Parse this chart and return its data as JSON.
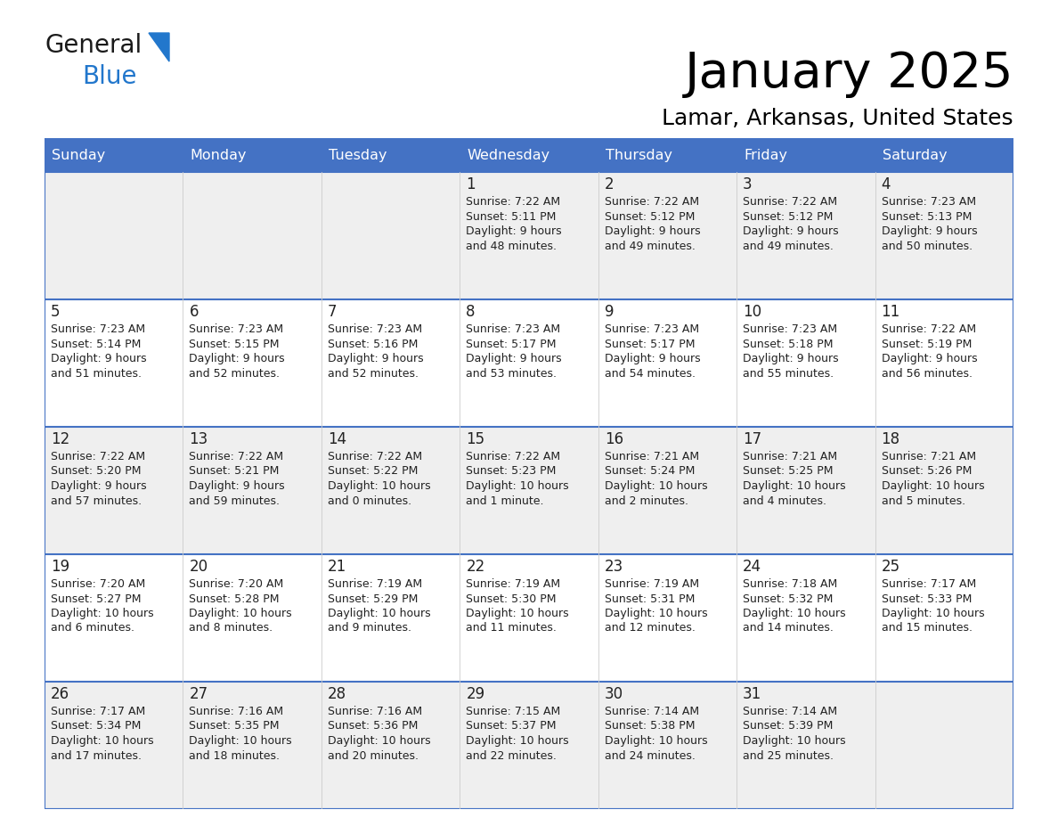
{
  "title": "January 2025",
  "subtitle": "Lamar, Arkansas, United States",
  "header_bg": "#4472C4",
  "header_text_color": "#FFFFFF",
  "row_bg_odd": "#EFEFEF",
  "row_bg_even": "#FFFFFF",
  "border_color": "#4472C4",
  "cell_border_color": "#4472C4",
  "day_names": [
    "Sunday",
    "Monday",
    "Tuesday",
    "Wednesday",
    "Thursday",
    "Friday",
    "Saturday"
  ],
  "days": [
    {
      "day": null,
      "sunrise": null,
      "sunset": null,
      "daylight_line1": null,
      "daylight_line2": null
    },
    {
      "day": null,
      "sunrise": null,
      "sunset": null,
      "daylight_line1": null,
      "daylight_line2": null
    },
    {
      "day": null,
      "sunrise": null,
      "sunset": null,
      "daylight_line1": null,
      "daylight_line2": null
    },
    {
      "day": 1,
      "sunrise": "7:22 AM",
      "sunset": "5:11 PM",
      "daylight_line1": "9 hours",
      "daylight_line2": "and 48 minutes."
    },
    {
      "day": 2,
      "sunrise": "7:22 AM",
      "sunset": "5:12 PM",
      "daylight_line1": "9 hours",
      "daylight_line2": "and 49 minutes."
    },
    {
      "day": 3,
      "sunrise": "7:22 AM",
      "sunset": "5:12 PM",
      "daylight_line1": "9 hours",
      "daylight_line2": "and 49 minutes."
    },
    {
      "day": 4,
      "sunrise": "7:23 AM",
      "sunset": "5:13 PM",
      "daylight_line1": "9 hours",
      "daylight_line2": "and 50 minutes."
    },
    {
      "day": 5,
      "sunrise": "7:23 AM",
      "sunset": "5:14 PM",
      "daylight_line1": "9 hours",
      "daylight_line2": "and 51 minutes."
    },
    {
      "day": 6,
      "sunrise": "7:23 AM",
      "sunset": "5:15 PM",
      "daylight_line1": "9 hours",
      "daylight_line2": "and 52 minutes."
    },
    {
      "day": 7,
      "sunrise": "7:23 AM",
      "sunset": "5:16 PM",
      "daylight_line1": "9 hours",
      "daylight_line2": "and 52 minutes."
    },
    {
      "day": 8,
      "sunrise": "7:23 AM",
      "sunset": "5:17 PM",
      "daylight_line1": "9 hours",
      "daylight_line2": "and 53 minutes."
    },
    {
      "day": 9,
      "sunrise": "7:23 AM",
      "sunset": "5:17 PM",
      "daylight_line1": "9 hours",
      "daylight_line2": "and 54 minutes."
    },
    {
      "day": 10,
      "sunrise": "7:23 AM",
      "sunset": "5:18 PM",
      "daylight_line1": "9 hours",
      "daylight_line2": "and 55 minutes."
    },
    {
      "day": 11,
      "sunrise": "7:22 AM",
      "sunset": "5:19 PM",
      "daylight_line1": "9 hours",
      "daylight_line2": "and 56 minutes."
    },
    {
      "day": 12,
      "sunrise": "7:22 AM",
      "sunset": "5:20 PM",
      "daylight_line1": "9 hours",
      "daylight_line2": "and 57 minutes."
    },
    {
      "day": 13,
      "sunrise": "7:22 AM",
      "sunset": "5:21 PM",
      "daylight_line1": "9 hours",
      "daylight_line2": "and 59 minutes."
    },
    {
      "day": 14,
      "sunrise": "7:22 AM",
      "sunset": "5:22 PM",
      "daylight_line1": "10 hours",
      "daylight_line2": "and 0 minutes."
    },
    {
      "day": 15,
      "sunrise": "7:22 AM",
      "sunset": "5:23 PM",
      "daylight_line1": "10 hours",
      "daylight_line2": "and 1 minute."
    },
    {
      "day": 16,
      "sunrise": "7:21 AM",
      "sunset": "5:24 PM",
      "daylight_line1": "10 hours",
      "daylight_line2": "and 2 minutes."
    },
    {
      "day": 17,
      "sunrise": "7:21 AM",
      "sunset": "5:25 PM",
      "daylight_line1": "10 hours",
      "daylight_line2": "and 4 minutes."
    },
    {
      "day": 18,
      "sunrise": "7:21 AM",
      "sunset": "5:26 PM",
      "daylight_line1": "10 hours",
      "daylight_line2": "and 5 minutes."
    },
    {
      "day": 19,
      "sunrise": "7:20 AM",
      "sunset": "5:27 PM",
      "daylight_line1": "10 hours",
      "daylight_line2": "and 6 minutes."
    },
    {
      "day": 20,
      "sunrise": "7:20 AM",
      "sunset": "5:28 PM",
      "daylight_line1": "10 hours",
      "daylight_line2": "and 8 minutes."
    },
    {
      "day": 21,
      "sunrise": "7:19 AM",
      "sunset": "5:29 PM",
      "daylight_line1": "10 hours",
      "daylight_line2": "and 9 minutes."
    },
    {
      "day": 22,
      "sunrise": "7:19 AM",
      "sunset": "5:30 PM",
      "daylight_line1": "10 hours",
      "daylight_line2": "and 11 minutes."
    },
    {
      "day": 23,
      "sunrise": "7:19 AM",
      "sunset": "5:31 PM",
      "daylight_line1": "10 hours",
      "daylight_line2": "and 12 minutes."
    },
    {
      "day": 24,
      "sunrise": "7:18 AM",
      "sunset": "5:32 PM",
      "daylight_line1": "10 hours",
      "daylight_line2": "and 14 minutes."
    },
    {
      "day": 25,
      "sunrise": "7:17 AM",
      "sunset": "5:33 PM",
      "daylight_line1": "10 hours",
      "daylight_line2": "and 15 minutes."
    },
    {
      "day": 26,
      "sunrise": "7:17 AM",
      "sunset": "5:34 PM",
      "daylight_line1": "10 hours",
      "daylight_line2": "and 17 minutes."
    },
    {
      "day": 27,
      "sunrise": "7:16 AM",
      "sunset": "5:35 PM",
      "daylight_line1": "10 hours",
      "daylight_line2": "and 18 minutes."
    },
    {
      "day": 28,
      "sunrise": "7:16 AM",
      "sunset": "5:36 PM",
      "daylight_line1": "10 hours",
      "daylight_line2": "and 20 minutes."
    },
    {
      "day": 29,
      "sunrise": "7:15 AM",
      "sunset": "5:37 PM",
      "daylight_line1": "10 hours",
      "daylight_line2": "and 22 minutes."
    },
    {
      "day": 30,
      "sunrise": "7:14 AM",
      "sunset": "5:38 PM",
      "daylight_line1": "10 hours",
      "daylight_line2": "and 24 minutes."
    },
    {
      "day": 31,
      "sunrise": "7:14 AM",
      "sunset": "5:39 PM",
      "daylight_line1": "10 hours",
      "daylight_line2": "and 25 minutes."
    },
    {
      "day": null,
      "sunrise": null,
      "sunset": null,
      "daylight_line1": null,
      "daylight_line2": null
    }
  ],
  "logo_general_color": "#1a1a1a",
  "logo_blue_color": "#2277CC",
  "logo_triangle_color": "#2277CC"
}
